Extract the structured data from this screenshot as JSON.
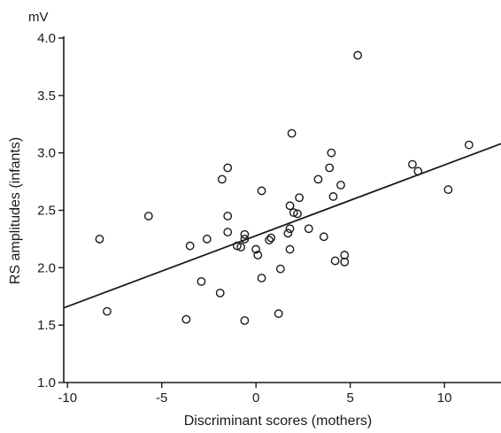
{
  "chart_data": {
    "type": "scatter",
    "title": "",
    "xlabel": "Discriminant scores (mothers)",
    "ylabel": "RS amplitudes (infants)",
    "y_unit": "mV",
    "xlim": [
      -10.2,
      13.0
    ],
    "ylim": [
      1.0,
      4.0
    ],
    "x_ticks": [
      -10,
      -5,
      0,
      5,
      10
    ],
    "x_tick_labels": [
      "-10",
      "-5",
      "0",
      "5",
      "10"
    ],
    "y_ticks": [
      1.0,
      1.5,
      2.0,
      2.5,
      3.0,
      3.5,
      4.0
    ],
    "y_tick_labels": [
      "1.0",
      "1.5",
      "2.0",
      "2.5",
      "3.0",
      "3.5",
      "4.0"
    ],
    "grid": false,
    "legend": "none",
    "marker": "open-circle",
    "colors": {
      "marker": "#1a1a1a",
      "line": "#1a1a1a",
      "axis": "#1a1a1a"
    },
    "regression_line": {
      "x": [
        -10.2,
        13.0
      ],
      "y": [
        1.65,
        3.08
      ]
    },
    "points": [
      {
        "x": -8.3,
        "y": 2.25
      },
      {
        "x": -7.9,
        "y": 1.62
      },
      {
        "x": -5.7,
        "y": 2.45
      },
      {
        "x": -3.5,
        "y": 2.19
      },
      {
        "x": -3.7,
        "y": 1.55
      },
      {
        "x": -2.9,
        "y": 1.88
      },
      {
        "x": -2.6,
        "y": 2.25
      },
      {
        "x": -1.8,
        "y": 2.77
      },
      {
        "x": -1.9,
        "y": 1.78
      },
      {
        "x": -1.5,
        "y": 2.87
      },
      {
        "x": -1.5,
        "y": 2.45
      },
      {
        "x": -1.5,
        "y": 2.31
      },
      {
        "x": -1.0,
        "y": 2.19
      },
      {
        "x": -0.8,
        "y": 2.18
      },
      {
        "x": -0.6,
        "y": 2.29
      },
      {
        "x": -0.6,
        "y": 2.25
      },
      {
        "x": -0.6,
        "y": 1.54
      },
      {
        "x": 0.0,
        "y": 2.16
      },
      {
        "x": 0.1,
        "y": 2.11
      },
      {
        "x": 0.3,
        "y": 2.67
      },
      {
        "x": 0.3,
        "y": 1.91
      },
      {
        "x": 0.7,
        "y": 2.24
      },
      {
        "x": 0.8,
        "y": 2.26
      },
      {
        "x": 1.3,
        "y": 1.99
      },
      {
        "x": 1.2,
        "y": 1.6
      },
      {
        "x": 1.7,
        "y": 2.3
      },
      {
        "x": 1.8,
        "y": 2.34
      },
      {
        "x": 1.8,
        "y": 2.54
      },
      {
        "x": 1.8,
        "y": 2.16
      },
      {
        "x": 1.9,
        "y": 3.17
      },
      {
        "x": 2.0,
        "y": 2.48
      },
      {
        "x": 2.2,
        "y": 2.47
      },
      {
        "x": 2.3,
        "y": 2.61
      },
      {
        "x": 2.8,
        "y": 2.34
      },
      {
        "x": 3.3,
        "y": 2.77
      },
      {
        "x": 3.6,
        "y": 2.27
      },
      {
        "x": 3.9,
        "y": 2.87
      },
      {
        "x": 4.0,
        "y": 3.0
      },
      {
        "x": 4.1,
        "y": 2.62
      },
      {
        "x": 4.2,
        "y": 2.06
      },
      {
        "x": 4.5,
        "y": 2.72
      },
      {
        "x": 4.7,
        "y": 2.11
      },
      {
        "x": 4.7,
        "y": 2.05
      },
      {
        "x": 5.4,
        "y": 3.85
      },
      {
        "x": 8.3,
        "y": 2.9
      },
      {
        "x": 8.6,
        "y": 2.84
      },
      {
        "x": 10.2,
        "y": 2.68
      },
      {
        "x": 11.3,
        "y": 3.07
      }
    ]
  }
}
